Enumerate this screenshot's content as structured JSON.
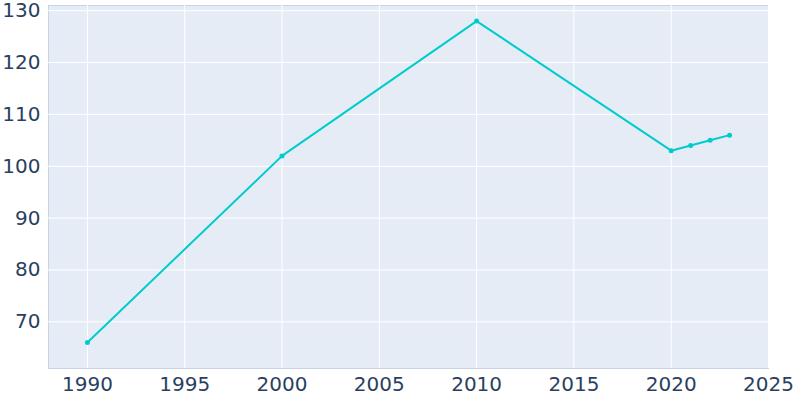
{
  "chart_data": {
    "type": "line",
    "x": [
      1990,
      2000,
      2010,
      2020,
      2021,
      2022,
      2023
    ],
    "values": [
      66,
      102,
      128,
      103,
      104,
      105,
      106
    ],
    "color": "#00cccc",
    "marker": "circle",
    "xlim": [
      1988,
      2025
    ],
    "ylim": [
      61,
      131
    ],
    "xticks": [
      1990,
      1995,
      2000,
      2005,
      2010,
      2015,
      2020,
      2025
    ],
    "yticks": [
      70,
      80,
      90,
      100,
      110,
      120,
      130
    ],
    "grid": true
  }
}
